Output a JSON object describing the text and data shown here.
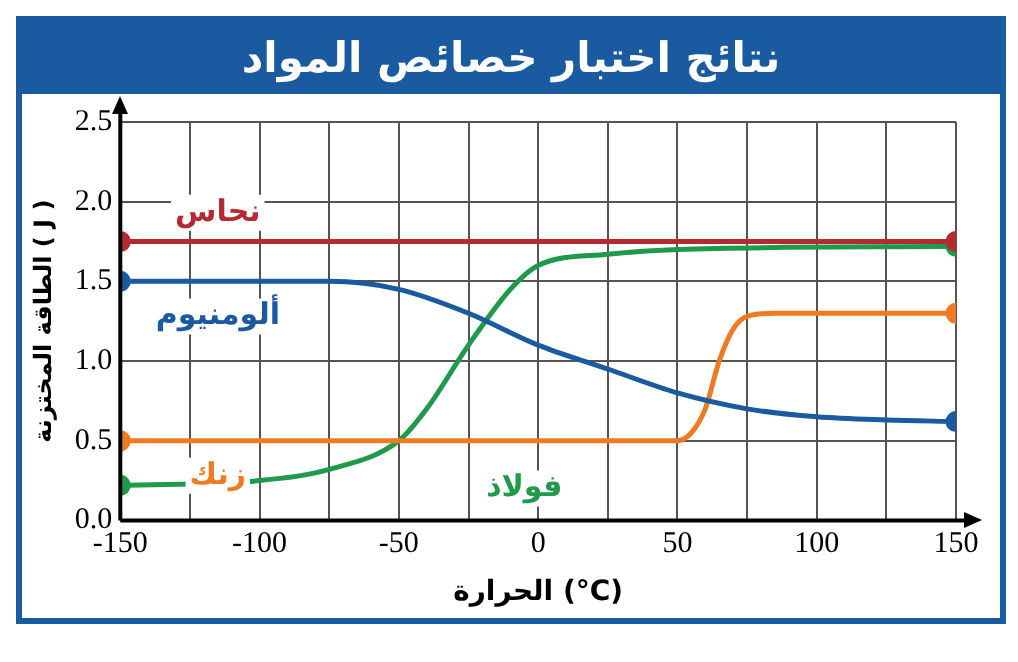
{
  "chart_data": {
    "type": "line",
    "title": "نتائج اختبار خصائص المواد",
    "xlabel": "الحرارة (°C)",
    "ylabel": "الطاقة المختزنة ( J )",
    "xlim": [
      -150,
      150
    ],
    "ylim": [
      0,
      2.5
    ],
    "xticks": [
      -150,
      {
        "value": -125,
        "label": null
      },
      -100,
      {
        "value": -75,
        "label": null
      },
      -50,
      {
        "value": -25,
        "label": null
      },
      0,
      {
        "value": 25,
        "label": null
      },
      50,
      {
        "value": 75,
        "label": null
      },
      100,
      {
        "value": 125,
        "label": null
      },
      150
    ],
    "yticks": [
      {
        "value": 0,
        "label": "0.0"
      },
      0.5,
      {
        "value": 1,
        "label": "1.0"
      },
      1.5,
      {
        "value": 2,
        "label": "2.0"
      },
      2.5
    ],
    "grid": true,
    "legend": false,
    "line_style": "solid",
    "series": [
      {
        "name": "نحاس",
        "color": "#b32a30",
        "marker": "circle",
        "x": [
          -150,
          150
        ],
        "values": [
          1.75,
          1.75
        ]
      },
      {
        "name": "ألومنيوم",
        "color": "#1a5aa0",
        "x": [
          -150,
          -100,
          -75,
          -50,
          -25,
          0,
          25,
          50,
          75,
          100,
          125,
          150
        ],
        "values": [
          1.5,
          1.5,
          1.5,
          1.45,
          1.3,
          1.1,
          0.95,
          0.8,
          0.7,
          0.65,
          0.63,
          0.62
        ]
      },
      {
        "name": "زنك",
        "color": "#ee7b24",
        "x": [
          -150,
          0,
          50,
          55,
          60,
          65,
          70,
          75,
          85,
          150
        ],
        "values": [
          0.5,
          0.5,
          0.5,
          0.55,
          0.7,
          1.0,
          1.2,
          1.28,
          1.3,
          1.3
        ]
      },
      {
        "name": "فولاذ",
        "color": "#1e9a4a",
        "x": [
          -150,
          -100,
          -75,
          -50,
          -40,
          -25,
          -10,
          0,
          25,
          50,
          150
        ],
        "values": [
          0.22,
          0.25,
          0.32,
          0.5,
          0.7,
          1.1,
          1.45,
          1.6,
          1.67,
          1.7,
          1.72
        ]
      }
    ]
  }
}
